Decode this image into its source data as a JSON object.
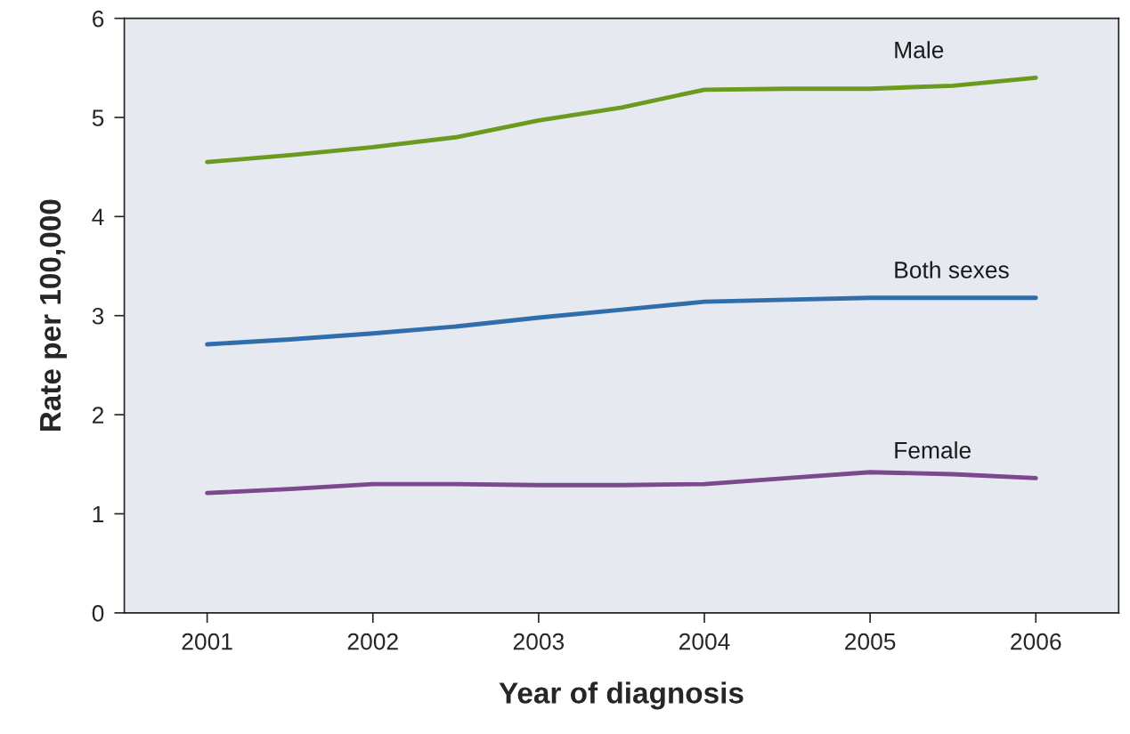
{
  "chart_data": {
    "type": "line",
    "xlabel": "Year of diagnosis",
    "ylabel": "Rate per 100,000",
    "x": [
      2001,
      2001.5,
      2002,
      2002.5,
      2003,
      2003.5,
      2004,
      2004.5,
      2005,
      2005.5,
      2006
    ],
    "series": [
      {
        "name": "Male",
        "color": "#6b9a1f",
        "values": [
          4.55,
          4.62,
          4.7,
          4.8,
          4.97,
          5.1,
          5.28,
          5.29,
          5.29,
          5.32,
          5.4
        ]
      },
      {
        "name": "Both sexes",
        "color": "#2f6eaa",
        "values": [
          2.71,
          2.76,
          2.82,
          2.89,
          2.98,
          3.06,
          3.14,
          3.16,
          3.18,
          3.18,
          3.18
        ]
      },
      {
        "name": "Female",
        "color": "#7a4a8c",
        "values": [
          1.21,
          1.25,
          1.3,
          1.3,
          1.29,
          1.29,
          1.3,
          1.36,
          1.42,
          1.4,
          1.36
        ]
      }
    ],
    "xlim": [
      2000.5,
      2006.5
    ],
    "xticks": [
      2001,
      2002,
      2003,
      2004,
      2005,
      2006
    ],
    "ylim": [
      0,
      6
    ],
    "yticks": [
      0,
      1,
      2,
      3,
      4,
      5,
      6
    ],
    "grid": false,
    "legend": false,
    "marker": "none",
    "line_style": "solid"
  }
}
